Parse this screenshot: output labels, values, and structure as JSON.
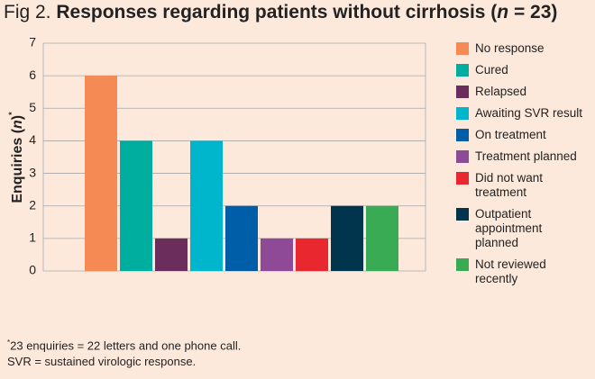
{
  "chart_data": {
    "type": "bar",
    "title": [
      "Fig 2.",
      "Responses regarding patients without cirrhosis (",
      "n",
      " = 23)"
    ],
    "ylabel": [
      "Enquiries (",
      "n",
      ")",
      "*"
    ],
    "categories": [
      null
    ],
    "series": [
      {
        "name": "No response",
        "color": "#f58a54",
        "values": [
          6
        ]
      },
      {
        "name": "Cured",
        "color": "#00ae9f",
        "values": [
          4
        ]
      },
      {
        "name": "Relapsed",
        "color": "#6b2d5c",
        "values": [
          1
        ]
      },
      {
        "name": "Awaiting SVR result",
        "color": "#00b6cc",
        "values": [
          4
        ]
      },
      {
        "name": "On treatment",
        "color": "#005ea8",
        "values": [
          2
        ]
      },
      {
        "name": "Treatment planned",
        "color": "#8e4a96",
        "values": [
          1
        ]
      },
      {
        "name": "Did not want treatment",
        "color": "#e8282e",
        "values": [
          1
        ]
      },
      {
        "name": "Outpatient appointment planned",
        "color": "#00354d",
        "values": [
          2
        ]
      },
      {
        "name": "Not reviewed recently",
        "color": "#3aab55",
        "values": [
          2
        ]
      }
    ],
    "ylim": [
      0,
      7
    ],
    "yticks": [
      0,
      1,
      2,
      3,
      4,
      5,
      6,
      7
    ],
    "grid": true,
    "footnotes": [
      [
        "*",
        "23 enquiries = 22 letters and one phone call."
      ],
      [
        "SVR = sustained virologic response."
      ]
    ]
  }
}
